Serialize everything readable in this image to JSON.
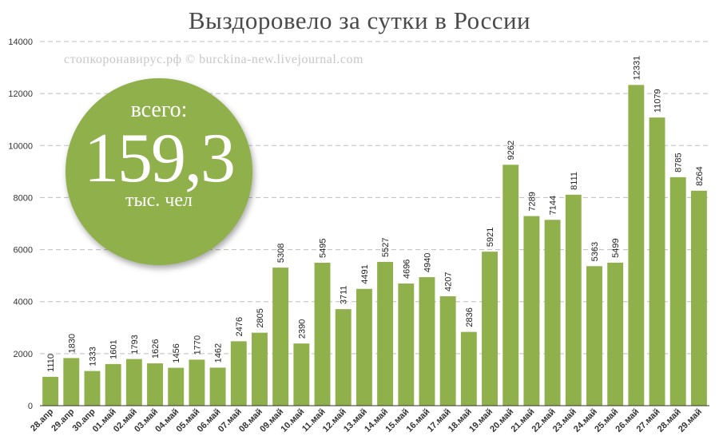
{
  "title": "Выздоровело за сутки в России",
  "watermark": "стопкоронавирус.рф © burckina-new.livejournal.com",
  "badge": {
    "top_text": "всего:",
    "value": "159,3",
    "unit": "тыс. чел"
  },
  "colors": {
    "bar": "#8fb04a",
    "grid": "#bfbfbf",
    "axis": "#333333",
    "badge": "#8fb04a"
  },
  "chart_data": {
    "type": "bar",
    "title": "Выздоровело за сутки в России",
    "xlabel": "",
    "ylabel": "",
    "ylim": [
      0,
      14000
    ],
    "yticks": [
      0,
      2000,
      4000,
      6000,
      8000,
      10000,
      12000,
      14000
    ],
    "grid": true,
    "categories": [
      "28.апр",
      "29.апр",
      "30.апр",
      "01.май",
      "02.май",
      "03.май",
      "04.май",
      "05.май",
      "06.май",
      "07.май",
      "08.май",
      "09.май",
      "10.май",
      "11.май",
      "12.май",
      "13.май",
      "14.май",
      "15.май",
      "16.май",
      "17.май",
      "18.май",
      "19.май",
      "20.май",
      "21.май",
      "22.май",
      "23.май",
      "24.май",
      "25.май",
      "26.май",
      "27.май",
      "28.май",
      "29.май"
    ],
    "values": [
      1110,
      1830,
      1333,
      1601,
      1793,
      1626,
      1456,
      1770,
      1462,
      2476,
      2805,
      5308,
      2390,
      5495,
      3711,
      4491,
      5527,
      4696,
      4940,
      4207,
      2836,
      5921,
      9262,
      7289,
      7144,
      8111,
      5363,
      5499,
      12331,
      11079,
      8785,
      8264
    ]
  }
}
